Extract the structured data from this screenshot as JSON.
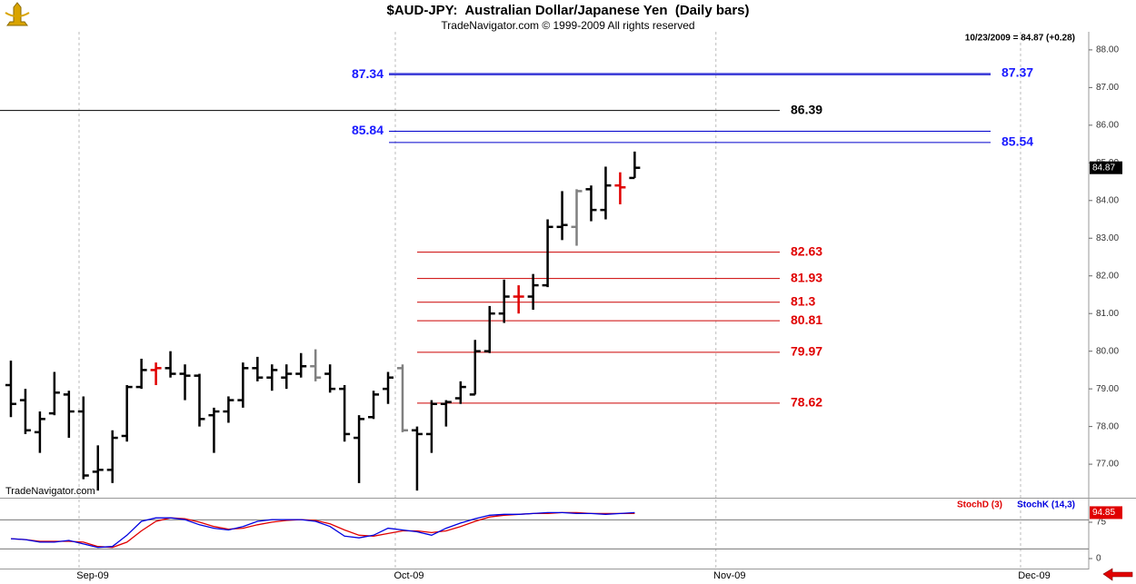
{
  "title": "$AUD-JPY:  Australian Dollar/Japanese Yen  (Daily bars)",
  "subtitle": "TradeNavigator.com © 1999-2009 All rights reserved",
  "quote": "10/23/2009 = 84.87 (+0.28)",
  "watermark": "TradeNavigator.com",
  "chart_data": [
    {
      "type": "ohlc",
      "x": [
        0,
        1,
        2,
        3,
        4,
        5,
        6,
        7,
        8,
        9,
        10,
        11,
        12,
        13,
        14,
        15,
        16,
        17,
        18,
        19,
        20,
        21,
        22,
        23,
        24,
        25,
        26,
        27,
        28,
        29,
        30,
        31,
        32,
        33,
        34,
        35,
        36,
        37,
        38,
        39,
        40,
        41,
        42,
        43
      ],
      "open": [
        79.1,
        78.7,
        77.85,
        78.35,
        78.85,
        78.4,
        76.8,
        76.85,
        77.75,
        79.05,
        79.5,
        79.55,
        79.4,
        79.35,
        78.3,
        78.4,
        78.7,
        79.55,
        79.3,
        79.3,
        79.4,
        79.6,
        79.4,
        79.0,
        77.7,
        78.25,
        79.0,
        79.55,
        77.9,
        77.8,
        78.6,
        78.75,
        78.85,
        80.0,
        81.0,
        81.45,
        81.45,
        81.75,
        83.3,
        83.3,
        84.3,
        83.75,
        84.4,
        84.6
      ],
      "high": [
        79.75,
        79.0,
        78.4,
        79.45,
        78.95,
        78.8,
        77.5,
        77.9,
        79.1,
        79.8,
        79.7,
        80.0,
        79.65,
        79.4,
        78.5,
        78.8,
        79.7,
        79.85,
        79.65,
        79.65,
        79.95,
        80.05,
        79.65,
        79.1,
        78.3,
        78.95,
        79.45,
        79.65,
        78.0,
        78.7,
        78.7,
        79.2,
        80.3,
        81.2,
        81.9,
        81.75,
        82.05,
        83.5,
        84.25,
        84.3,
        84.4,
        84.9,
        84.75,
        85.3
      ],
      "low": [
        78.25,
        77.8,
        77.3,
        78.3,
        77.7,
        76.6,
        76.3,
        76.5,
        77.6,
        79.0,
        79.1,
        79.3,
        78.7,
        78.0,
        77.3,
        78.1,
        78.5,
        79.2,
        78.95,
        79.0,
        79.3,
        79.2,
        78.9,
        77.6,
        76.5,
        78.2,
        78.6,
        77.85,
        76.3,
        77.3,
        78.0,
        78.6,
        78.85,
        79.95,
        80.75,
        81.0,
        81.1,
        81.7,
        82.95,
        82.8,
        83.45,
        83.5,
        83.9,
        84.6
      ],
      "close": [
        78.6,
        77.9,
        78.2,
        78.9,
        78.4,
        76.7,
        76.85,
        77.7,
        79.05,
        79.5,
        79.55,
        79.4,
        79.35,
        78.2,
        78.4,
        78.7,
        79.55,
        79.3,
        79.5,
        79.4,
        79.6,
        79.3,
        79.0,
        77.8,
        78.2,
        78.85,
        79.3,
        77.9,
        77.8,
        78.6,
        78.65,
        79.05,
        80.0,
        81.0,
        81.45,
        81.45,
        81.75,
        83.3,
        83.35,
        84.25,
        83.75,
        84.4,
        84.35,
        84.87
      ],
      "colors": [
        "#000000",
        "#000000",
        "#000000",
        "#000000",
        "#000000",
        "#000000",
        "#000000",
        "#000000",
        "#000000",
        "#000000",
        "#e00000",
        "#000000",
        "#000000",
        "#000000",
        "#000000",
        "#000000",
        "#000000",
        "#000000",
        "#000000",
        "#000000",
        "#000000",
        "#808080",
        "#000000",
        "#000000",
        "#000000",
        "#000000",
        "#000000",
        "#808080",
        "#000000",
        "#000000",
        "#000000",
        "#000000",
        "#000000",
        "#000000",
        "#000000",
        "#e00000",
        "#000000",
        "#000000",
        "#000000",
        "#808080",
        "#000000",
        "#000000",
        "#e00000",
        "#000000"
      ],
      "xlim": [
        -0.75,
        74.3
      ],
      "ylim": [
        76.11,
        88.48
      ],
      "yticks": [
        {
          "value": 77,
          "label": "77.00"
        },
        {
          "value": 78,
          "label": "78.00"
        },
        {
          "value": 79,
          "label": "79.00"
        },
        {
          "value": 80,
          "label": "80.00"
        },
        {
          "value": 81,
          "label": "81.00"
        },
        {
          "value": 82,
          "label": "82.00"
        },
        {
          "value": 83,
          "label": "83.00"
        },
        {
          "value": 84,
          "label": "84.00"
        },
        {
          "value": 85,
          "label": "85.00"
        },
        {
          "value": 86,
          "label": "86.00"
        },
        {
          "value": 87,
          "label": "87.00"
        },
        {
          "value": 88,
          "label": "88.00"
        }
      ],
      "levels": [
        {
          "value": 87.34,
          "color": "#0000cc",
          "label": "left"
        },
        {
          "value": 87.37,
          "color": "#0000cc",
          "label": "right"
        },
        {
          "value": 86.39,
          "color": "#000000",
          "label": "right"
        },
        {
          "value": 85.84,
          "color": "#0000cc",
          "label": "left"
        },
        {
          "value": 85.54,
          "color": "#0000cc",
          "label": "right"
        },
        {
          "value": 82.63,
          "color": "#cc0000",
          "label": "right"
        },
        {
          "value": 81.93,
          "color": "#cc0000",
          "label": "right"
        },
        {
          "value": 81.3,
          "color": "#cc0000",
          "label": "right"
        },
        {
          "value": 80.81,
          "color": "#cc0000",
          "label": "right"
        },
        {
          "value": 79.97,
          "color": "#cc0000",
          "label": "right"
        },
        {
          "value": 78.62,
          "color": "#cc0000",
          "label": "right"
        }
      ]
    },
    {
      "type": "line",
      "x": [
        0,
        1,
        2,
        3,
        4,
        5,
        6,
        7,
        8,
        9,
        10,
        11,
        12,
        13,
        14,
        15,
        16,
        17,
        18,
        19,
        20,
        21,
        22,
        23,
        24,
        25,
        26,
        27,
        28,
        29,
        30,
        31,
        32,
        33,
        34,
        35,
        36,
        37,
        38,
        39,
        40,
        41,
        42,
        43
      ],
      "series": [
        {
          "name": "StochD (3)",
          "color": "#e00000",
          "values": [
            41.0,
            39.2,
            35.7,
            35.7,
            35.7,
            33.9,
            24.9,
            23.1,
            33.9,
            57.2,
            76.9,
            84.1,
            82.3,
            75.2,
            66.2,
            60.8,
            62.6,
            69.8,
            75.2,
            78.7,
            80.5,
            78.7,
            71.6,
            59.0,
            48.2,
            46.4,
            51.8,
            57.2,
            57.2,
            53.6,
            57.2,
            66.2,
            76.9,
            85.9,
            89.5,
            91.3,
            93.1,
            93.1,
            94.9,
            94.9,
            93.1,
            93.1,
            93.1,
            93.1
          ]
        },
        {
          "name": "StochK (14,3)",
          "color": "#0000e0",
          "values": [
            41.0,
            39.2,
            33.9,
            33.9,
            37.5,
            30.3,
            23.1,
            24.9,
            48.2,
            76.9,
            84.1,
            84.1,
            80.5,
            69.8,
            62.6,
            59.0,
            66.2,
            76.9,
            80.5,
            80.5,
            80.5,
            76.9,
            66.2,
            46.4,
            42.8,
            48.2,
            62.6,
            59.0,
            55.4,
            48.2,
            62.6,
            73.4,
            82.3,
            89.5,
            91.3,
            91.3,
            93.1,
            94.9,
            94.9,
            93.1,
            93.1,
            91.3,
            93.1,
            94.85
          ]
        }
      ],
      "xlim": [
        -0.75,
        74.3
      ],
      "ylim": [
        -20.6,
        121.9
      ],
      "yticks": [
        0,
        75
      ],
      "hlines": [
        20,
        80
      ],
      "xticks": [
        {
          "value": 4.7,
          "label": "Sep-09"
        },
        {
          "value": 26.5,
          "label": "Oct-09"
        },
        {
          "value": 48.6,
          "label": "Nov-09"
        },
        {
          "value": 69.6,
          "label": "Dec-09"
        }
      ]
    }
  ]
}
